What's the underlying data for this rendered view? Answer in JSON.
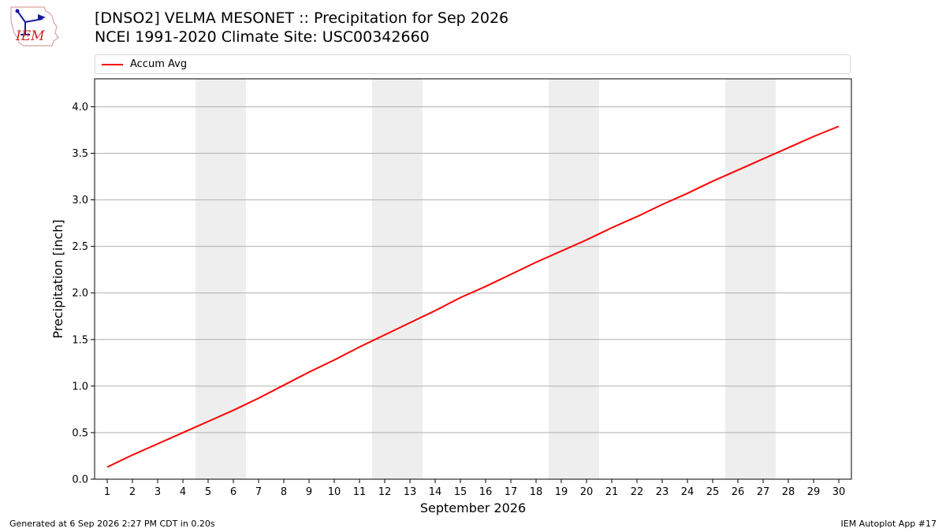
{
  "logo": {
    "text": "IEM"
  },
  "header": {
    "title_line1": "[DNSO2] VELMA MESONET :: Precipitation for Sep 2026",
    "title_line2": "NCEI 1991-2020 Climate Site: USC00342660"
  },
  "footer": {
    "left": "Generated at 6 Sep 2026 2:27 PM CDT in 0.20s",
    "right": "IEM Autoplot App #17"
  },
  "chart_data": {
    "type": "line",
    "xlabel": "September 2026",
    "ylabel": "Precipitation [inch]",
    "x": [
      1,
      2,
      3,
      4,
      5,
      6,
      7,
      8,
      9,
      10,
      11,
      12,
      13,
      14,
      15,
      16,
      17,
      18,
      19,
      20,
      21,
      22,
      23,
      24,
      25,
      26,
      27,
      28,
      29,
      30
    ],
    "xlim": [
      0.5,
      30.5
    ],
    "ylim": [
      0,
      4.3
    ],
    "yticks": [
      0.0,
      0.5,
      1.0,
      1.5,
      2.0,
      2.5,
      3.0,
      3.5,
      4.0
    ],
    "grid": "horizontal",
    "legend_placement": "top",
    "weekend_shading": [
      [
        4.5,
        6.5
      ],
      [
        11.5,
        13.5
      ],
      [
        18.5,
        20.5
      ],
      [
        25.5,
        27.5
      ]
    ],
    "series": [
      {
        "name": "Accum Avg",
        "color": "#ff0000",
        "values": [
          0.13,
          0.26,
          0.38,
          0.5,
          0.62,
          0.74,
          0.87,
          1.01,
          1.15,
          1.28,
          1.42,
          1.55,
          1.68,
          1.81,
          1.95,
          2.07,
          2.2,
          2.33,
          2.45,
          2.57,
          2.7,
          2.82,
          2.95,
          3.07,
          3.2,
          3.32,
          3.44,
          3.56,
          3.68,
          3.79
        ]
      }
    ]
  }
}
